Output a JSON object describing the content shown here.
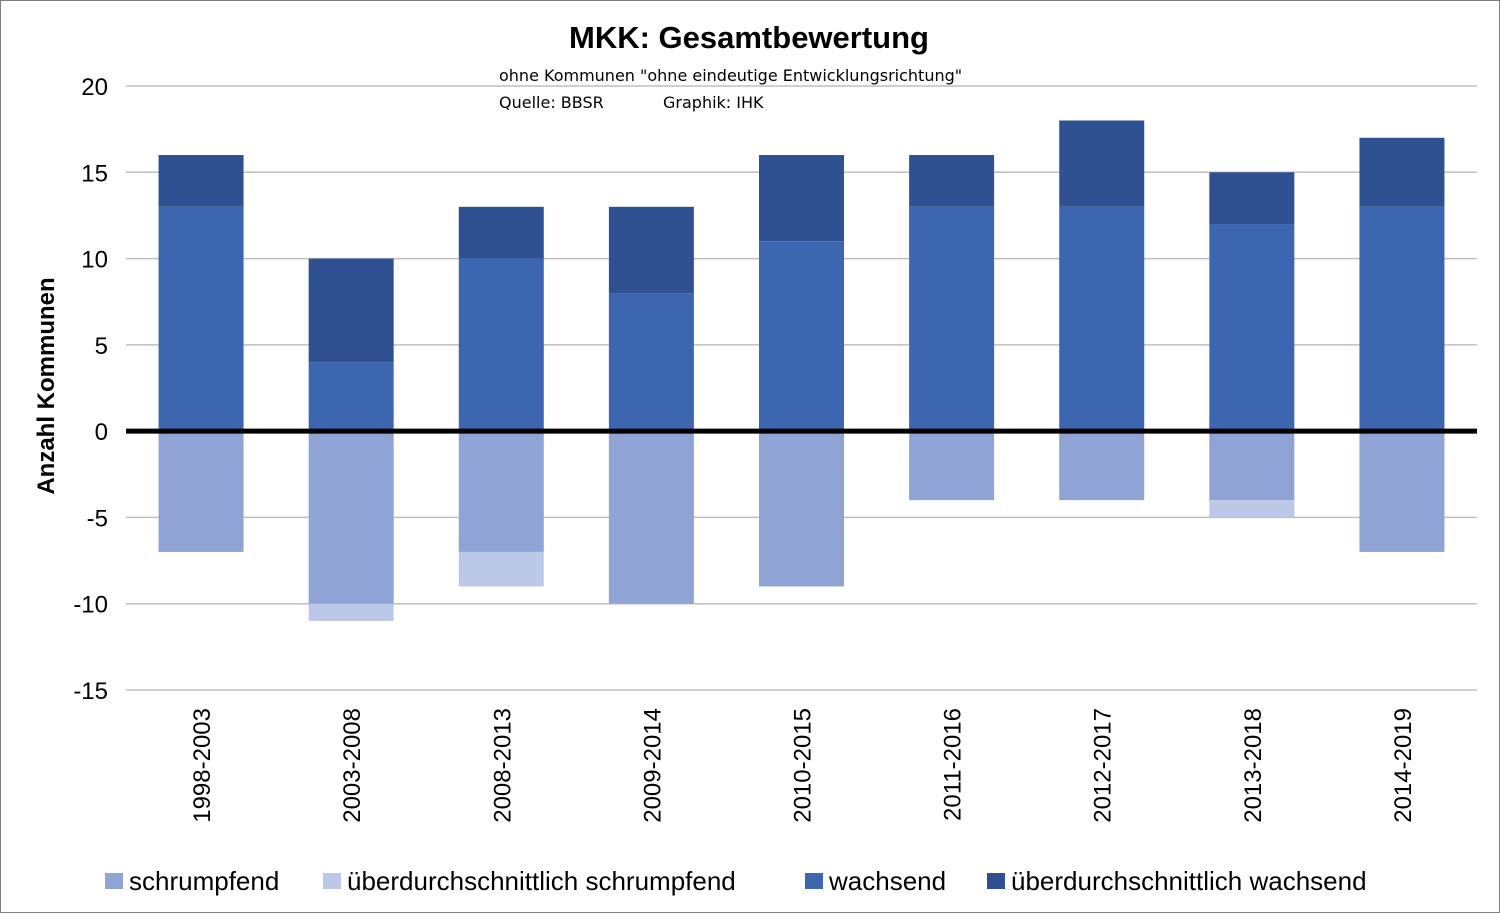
{
  "chart_data": {
    "type": "bar",
    "stacked": true,
    "title": "MKK:  Gesamtbewertung",
    "subtitle": "ohne Kommunen \"ohne eindeutige Entwicklungsrichtung\"",
    "source": "Quelle: BBSR",
    "graphic_credit": "Graphik: IHK",
    "ylabel": "Anzahl Kommunen",
    "xlabel": "",
    "ylim": [
      -15,
      20
    ],
    "yticks": [
      20,
      15,
      10,
      5,
      0,
      -5,
      -10,
      -15
    ],
    "grid": true,
    "legend_position": "bottom",
    "categories": [
      "1998-2003",
      "2003-2008",
      "2008-2013",
      "2009-2014",
      "2010-2015",
      "2011-2016",
      "2012-2017",
      "2013-2018",
      "2014-2019"
    ],
    "series": [
      {
        "name": "schrumpfend",
        "color": "#8fa3d4",
        "values": [
          -7,
          -10,
          -7,
          -10,
          -9,
          -4,
          -4,
          -4,
          -7
        ]
      },
      {
        "name": "überdurchschnittlich schrumpfend",
        "color": "#bcc8e8",
        "values": [
          0,
          -1,
          -2,
          0,
          0,
          0,
          0,
          -1,
          0
        ]
      },
      {
        "name": "wachsend",
        "color": "#3d66b0",
        "values": [
          13,
          4,
          10,
          8,
          11,
          13,
          13,
          12,
          13
        ]
      },
      {
        "name": "überdurchschnittlich wachsend",
        "color": "#2f5191",
        "values": [
          3,
          6,
          3,
          5,
          5,
          3,
          5,
          3,
          4
        ]
      }
    ]
  }
}
